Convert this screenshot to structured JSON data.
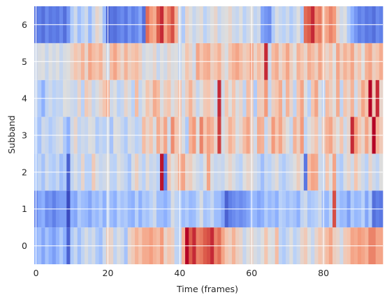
{
  "chart_data": {
    "type": "heatmap",
    "title": "",
    "xlabel": "Time (frames)",
    "ylabel": "Subband",
    "x_ticks": [
      0,
      20,
      40,
      60,
      80
    ],
    "y_ticks": [
      0,
      1,
      2,
      3,
      4,
      5,
      6
    ],
    "xlim": [
      -0.5,
      96.5
    ],
    "ylim": [
      -0.5,
      6.5
    ],
    "colormap": "coolwarm",
    "color_range": [
      0,
      1
    ],
    "grid": true,
    "n_frames": 97,
    "n_subbands": 7,
    "values": [
      [
        0.28,
        0.31,
        0.22,
        0.32,
        0.25,
        0.2,
        0.27,
        0.35,
        0.25,
        0.05,
        0.35,
        0.43,
        0.3,
        0.4,
        0.48,
        0.4,
        0.46,
        0.35,
        0.3,
        0.44,
        0.58,
        0.55,
        0.4,
        0.49,
        0.44,
        0.32,
        0.55,
        0.6,
        0.68,
        0.62,
        0.7,
        0.7,
        0.74,
        0.68,
        0.65,
        0.75,
        0.55,
        0.62,
        0.58,
        0.4,
        0.4,
        0.68,
        1.0,
        0.88,
        0.95,
        0.8,
        0.82,
        0.88,
        0.9,
        0.95,
        0.8,
        0.85,
        0.72,
        0.62,
        0.58,
        0.68,
        0.58,
        0.55,
        0.42,
        0.5,
        0.55,
        0.48,
        0.44,
        0.5,
        0.62,
        0.5,
        0.48,
        0.65,
        0.4,
        0.35,
        0.42,
        0.5,
        0.38,
        0.44,
        0.55,
        0.6,
        0.5,
        0.42,
        0.55,
        0.62,
        0.58,
        0.65,
        0.72,
        0.58,
        0.55,
        0.45,
        0.6,
        0.62,
        0.72,
        0.7,
        0.75,
        0.72,
        0.68,
        0.8,
        0.8,
        0.72,
        0.72
      ],
      [
        0.15,
        0.22,
        0.25,
        0.15,
        0.18,
        0.12,
        0.18,
        0.2,
        0.2,
        0.0,
        0.25,
        0.22,
        0.35,
        0.3,
        0.28,
        0.22,
        0.32,
        0.28,
        0.35,
        0.25,
        0.4,
        0.3,
        0.25,
        0.38,
        0.32,
        0.35,
        0.28,
        0.25,
        0.38,
        0.25,
        0.35,
        0.32,
        0.38,
        0.45,
        0.3,
        0.3,
        0.25,
        0.32,
        0.48,
        0.4,
        0.38,
        0.3,
        0.35,
        0.28,
        0.3,
        0.38,
        0.48,
        0.32,
        0.35,
        0.42,
        0.3,
        0.3,
        0.22,
        0.05,
        0.12,
        0.15,
        0.18,
        0.15,
        0.18,
        0.22,
        0.3,
        0.28,
        0.22,
        0.25,
        0.35,
        0.28,
        0.32,
        0.25,
        0.38,
        0.35,
        0.3,
        0.35,
        0.32,
        0.25,
        0.4,
        0.45,
        0.32,
        0.35,
        0.38,
        0.45,
        0.3,
        0.28,
        0.4,
        0.9,
        0.35,
        0.28,
        0.3,
        0.2,
        0.35,
        0.28,
        0.3,
        0.38,
        0.22,
        0.35,
        0.08,
        0.12,
        0.1
      ],
      [
        0.35,
        0.4,
        0.32,
        0.45,
        0.38,
        0.35,
        0.42,
        0.3,
        0.35,
        0.05,
        0.4,
        0.48,
        0.4,
        0.55,
        0.38,
        0.38,
        0.6,
        0.48,
        0.42,
        0.45,
        0.5,
        0.4,
        0.38,
        0.5,
        0.45,
        0.4,
        0.32,
        0.48,
        0.58,
        0.45,
        0.38,
        0.52,
        0.42,
        0.45,
        0.38,
        0.98,
        0.12,
        0.62,
        0.5,
        0.55,
        0.68,
        0.72,
        0.55,
        0.58,
        0.5,
        0.45,
        0.4,
        0.5,
        0.72,
        0.48,
        0.42,
        0.45,
        0.42,
        0.5,
        0.55,
        0.48,
        0.42,
        0.38,
        0.5,
        0.55,
        0.52,
        0.45,
        0.4,
        0.3,
        0.42,
        0.38,
        0.45,
        0.52,
        0.4,
        0.35,
        0.42,
        0.45,
        0.5,
        0.58,
        0.48,
        0.1,
        0.65,
        0.72,
        0.7,
        0.45,
        0.42,
        0.62,
        0.5,
        0.72,
        0.4,
        0.35,
        0.48,
        0.55,
        0.45,
        0.62,
        0.52,
        0.45,
        0.38,
        0.55,
        0.45,
        0.4,
        0.5
      ],
      [
        0.38,
        0.32,
        0.45,
        0.42,
        0.35,
        0.4,
        0.45,
        0.48,
        0.35,
        0.25,
        0.45,
        0.55,
        0.4,
        0.45,
        0.42,
        0.5,
        0.48,
        0.35,
        0.42,
        0.38,
        0.45,
        0.32,
        0.5,
        0.48,
        0.42,
        0.35,
        0.48,
        0.45,
        0.38,
        0.42,
        0.65,
        0.55,
        0.62,
        0.48,
        0.7,
        0.58,
        0.72,
        0.45,
        0.78,
        0.62,
        0.58,
        0.48,
        0.35,
        0.68,
        0.75,
        0.5,
        0.8,
        0.62,
        0.72,
        0.68,
        0.55,
        0.92,
        0.48,
        0.55,
        0.68,
        0.62,
        0.48,
        0.55,
        0.65,
        0.72,
        0.58,
        0.45,
        0.7,
        0.68,
        0.42,
        0.55,
        0.75,
        0.62,
        0.72,
        0.58,
        0.5,
        0.42,
        0.68,
        0.58,
        0.75,
        0.4,
        0.5,
        0.55,
        0.62,
        0.45,
        0.58,
        0.68,
        0.72,
        0.58,
        0.5,
        0.62,
        0.45,
        0.55,
        0.95,
        0.75,
        0.62,
        0.55,
        0.72,
        0.58,
        1.0,
        0.68,
        0.6
      ],
      [
        0.42,
        0.35,
        0.25,
        0.4,
        0.45,
        0.38,
        0.42,
        0.4,
        0.5,
        0.48,
        0.45,
        0.42,
        0.55,
        0.38,
        0.6,
        0.55,
        0.42,
        0.48,
        0.55,
        0.62,
        0.68,
        0.45,
        0.5,
        0.38,
        0.42,
        0.55,
        0.48,
        0.38,
        0.65,
        0.42,
        0.5,
        0.62,
        0.55,
        0.7,
        0.65,
        0.48,
        0.58,
        0.62,
        0.48,
        0.55,
        0.62,
        0.45,
        0.58,
        0.68,
        0.55,
        0.42,
        0.5,
        0.6,
        0.62,
        0.55,
        0.45,
        0.95,
        0.45,
        0.62,
        0.5,
        0.62,
        0.48,
        0.55,
        0.4,
        0.65,
        0.58,
        0.35,
        0.6,
        0.58,
        0.75,
        0.42,
        0.58,
        0.62,
        0.7,
        0.45,
        0.68,
        0.55,
        0.4,
        0.62,
        0.72,
        0.5,
        0.38,
        0.62,
        0.72,
        0.48,
        0.4,
        0.65,
        0.58,
        0.5,
        0.7,
        0.4,
        0.62,
        0.55,
        0.68,
        0.45,
        0.58,
        0.72,
        0.62,
        1.0,
        0.6,
        0.95,
        0.55
      ],
      [
        0.45,
        0.48,
        0.5,
        0.42,
        0.5,
        0.45,
        0.5,
        0.42,
        0.48,
        0.5,
        0.55,
        0.62,
        0.58,
        0.68,
        0.55,
        0.72,
        0.65,
        0.62,
        0.68,
        0.55,
        0.45,
        0.65,
        0.72,
        0.62,
        0.55,
        0.68,
        0.58,
        0.62,
        0.65,
        0.58,
        0.45,
        0.5,
        0.48,
        0.55,
        0.42,
        0.5,
        0.45,
        0.55,
        0.48,
        0.5,
        0.42,
        0.5,
        0.62,
        0.55,
        0.45,
        0.72,
        0.62,
        0.68,
        0.7,
        0.58,
        0.62,
        0.68,
        0.55,
        0.48,
        0.62,
        0.68,
        0.72,
        0.65,
        0.58,
        0.62,
        0.72,
        0.55,
        0.65,
        0.58,
        0.95,
        0.45,
        0.65,
        0.7,
        0.55,
        0.62,
        0.72,
        0.58,
        0.5,
        0.68,
        0.62,
        0.55,
        0.7,
        0.65,
        0.58,
        0.72,
        0.62,
        0.55,
        0.62,
        0.5,
        0.72,
        0.58,
        0.68,
        0.62,
        0.72,
        0.55,
        0.62,
        0.5,
        0.68,
        0.72,
        0.58,
        0.62,
        0.7
      ],
      [
        0.1,
        0.12,
        0.08,
        0.15,
        0.1,
        0.12,
        0.1,
        0.15,
        0.08,
        0.18,
        0.35,
        0.45,
        0.3,
        0.38,
        0.45,
        0.28,
        0.42,
        0.55,
        0.48,
        0.3,
        0.05,
        0.1,
        0.08,
        0.12,
        0.15,
        0.1,
        0.18,
        0.12,
        0.15,
        0.22,
        0.08,
        0.85,
        0.75,
        0.7,
        0.88,
        0.95,
        0.72,
        0.82,
        0.9,
        0.68,
        0.45,
        0.35,
        0.55,
        0.5,
        0.42,
        0.48,
        0.52,
        0.38,
        0.45,
        0.5,
        0.55,
        0.42,
        0.48,
        0.5,
        0.55,
        0.45,
        0.42,
        0.5,
        0.38,
        0.45,
        0.5,
        0.4,
        0.45,
        0.22,
        0.18,
        0.15,
        0.35,
        0.48,
        0.42,
        0.38,
        0.45,
        0.35,
        0.42,
        0.5,
        0.35,
        0.85,
        0.88,
        0.95,
        0.78,
        0.82,
        0.65,
        0.72,
        0.8,
        0.75,
        0.55,
        0.45,
        0.5,
        0.35,
        0.25,
        0.18,
        0.12,
        0.15,
        0.1,
        0.12,
        0.08,
        0.15,
        0.12
      ]
    ]
  }
}
